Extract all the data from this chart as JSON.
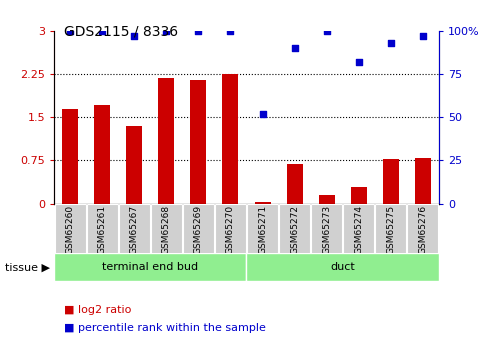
{
  "title": "GDS2115 / 8336",
  "samples": [
    "GSM65260",
    "GSM65261",
    "GSM65267",
    "GSM65268",
    "GSM65269",
    "GSM65270",
    "GSM65271",
    "GSM65272",
    "GSM65273",
    "GSM65274",
    "GSM65275",
    "GSM65276"
  ],
  "log2_ratio": [
    1.65,
    1.72,
    1.35,
    2.18,
    2.15,
    2.25,
    0.02,
    0.68,
    0.15,
    0.28,
    0.78,
    0.8
  ],
  "percentile_rank": [
    100,
    100,
    97,
    100,
    100,
    100,
    52,
    90,
    100,
    82,
    93,
    97
  ],
  "bar_color": "#cc0000",
  "dot_color": "#0000cc",
  "ylim_left": [
    0,
    3
  ],
  "ylim_right": [
    0,
    100
  ],
  "yticks_left": [
    0,
    0.75,
    1.5,
    2.25,
    3
  ],
  "yticks_right": [
    0,
    25,
    50,
    75,
    100
  ],
  "ytick_labels_right": [
    "0",
    "25",
    "50",
    "75",
    "100%"
  ],
  "hlines": [
    0.75,
    1.5,
    2.25
  ],
  "groups": [
    {
      "label": "terminal end bud",
      "start": 0,
      "end": 6,
      "color": "#90ee90"
    },
    {
      "label": "duct",
      "start": 6,
      "end": 12,
      "color": "#90ee90"
    }
  ],
  "tissue_label": "tissue",
  "legend_items": [
    {
      "label": "log2 ratio",
      "color": "#cc0000"
    },
    {
      "label": "percentile rank within the sample",
      "color": "#0000cc"
    }
  ],
  "background_color": "#ffffff",
  "tick_label_bg": "#cccccc"
}
